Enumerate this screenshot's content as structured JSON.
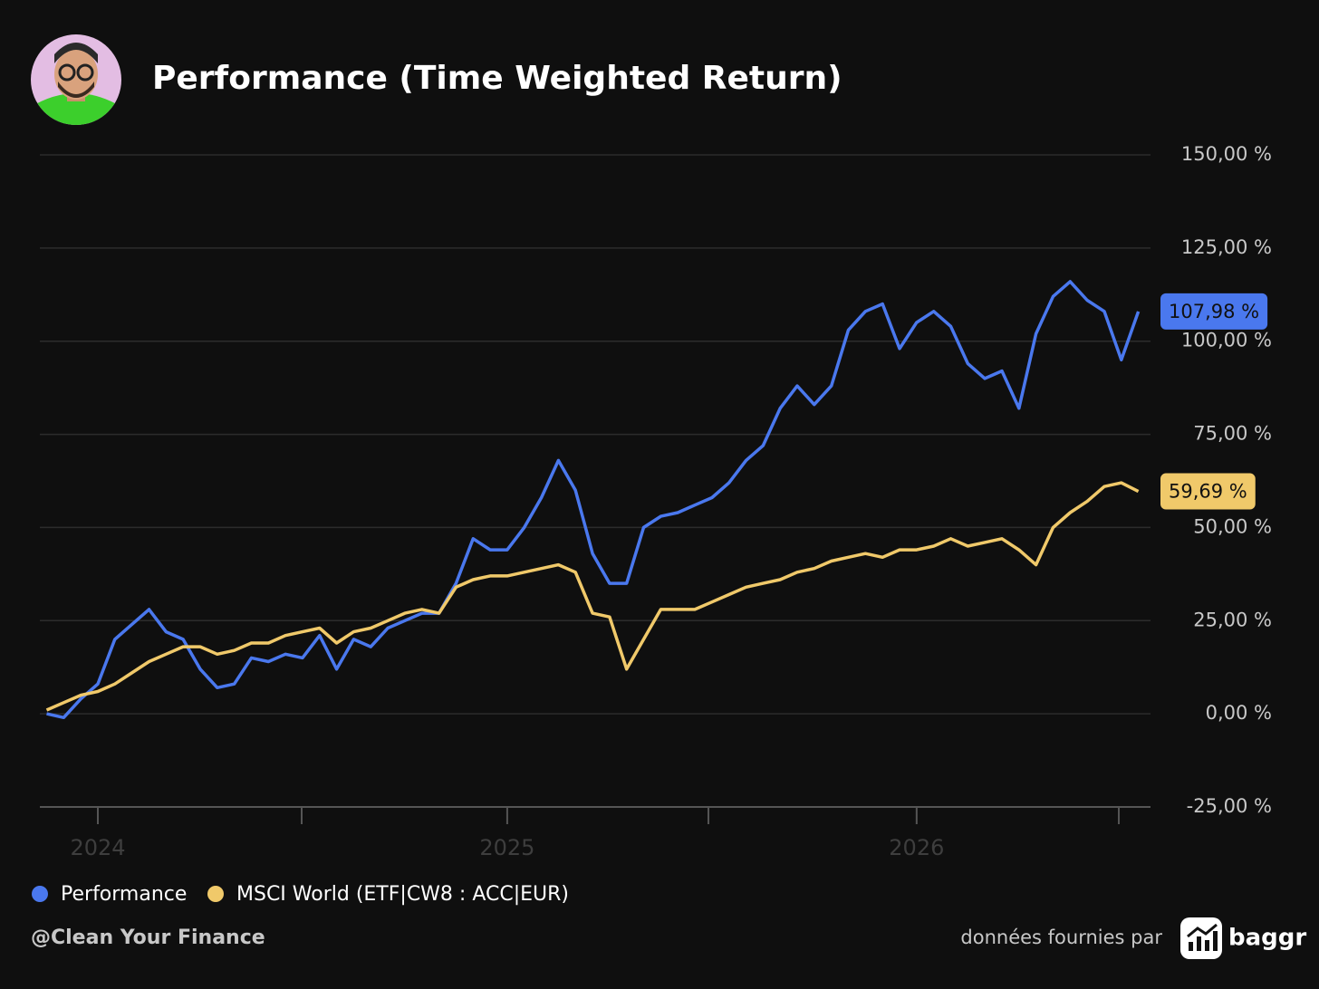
{
  "chart_data": {
    "type": "line",
    "title": "Performance (Time Weighted Return)",
    "categories": [
      null,
      null,
      null,
      "2024",
      null,
      null,
      null,
      null,
      null,
      null,
      null,
      null,
      null,
      null,
      null,
      null,
      null,
      null,
      null,
      null,
      null,
      null,
      null,
      null,
      null,
      null,
      null,
      "2025",
      null,
      null,
      null,
      null,
      null,
      null,
      null,
      null,
      null,
      null,
      null,
      null,
      null,
      null,
      null,
      null,
      null,
      null,
      null,
      null,
      null,
      null,
      null,
      "2026",
      null,
      null,
      null,
      null,
      null,
      null,
      null,
      null,
      null,
      null,
      null,
      null,
      null
    ],
    "series": [
      {
        "name": "Performance",
        "color": "#4a78ee",
        "values": [
          0,
          -1,
          4,
          8,
          20,
          24,
          28,
          22,
          20,
          12,
          7,
          8,
          15,
          14,
          16,
          15,
          21,
          12,
          20,
          18,
          23,
          25,
          27,
          27,
          35,
          47,
          44,
          44,
          50,
          58,
          68,
          60,
          43,
          35,
          35,
          50,
          53,
          54,
          56,
          58,
          62,
          68,
          72,
          82,
          88,
          83,
          88,
          103,
          108,
          110,
          98,
          105,
          108,
          104,
          94,
          90,
          92,
          82,
          102,
          112,
          116,
          111,
          108,
          95,
          107.98
        ],
        "value_labels": [
          null,
          null,
          null,
          null,
          null,
          null,
          null,
          null,
          null,
          null,
          null,
          null,
          null,
          null,
          null,
          null,
          null,
          null,
          null,
          null,
          null,
          null,
          null,
          null,
          null,
          null,
          null,
          null,
          null,
          null,
          null,
          null,
          null,
          null,
          null,
          null,
          null,
          null,
          null,
          null,
          null,
          null,
          null,
          null,
          null,
          null,
          null,
          null,
          null,
          null,
          null,
          null,
          null,
          null,
          null,
          null,
          null,
          null,
          null,
          null,
          null,
          null,
          null,
          null,
          "107,98 %"
        ]
      },
      {
        "name": "MSCI World (ETF|CW8 : ACC|EUR)",
        "color": "#f0c96a",
        "values": [
          1,
          3,
          5,
          6,
          8,
          11,
          14,
          16,
          18,
          18,
          16,
          17,
          19,
          19,
          21,
          22,
          23,
          19,
          22,
          23,
          25,
          27,
          28,
          27,
          34,
          36,
          37,
          37,
          38,
          39,
          40,
          38,
          27,
          26,
          12,
          20,
          28,
          28,
          28,
          30,
          32,
          34,
          35,
          36,
          38,
          39,
          41,
          42,
          43,
          42,
          44,
          44,
          45,
          47,
          45,
          46,
          47,
          44,
          40,
          50,
          54,
          57,
          61,
          62,
          59.69
        ],
        "value_labels": [
          null,
          null,
          null,
          null,
          null,
          null,
          null,
          null,
          null,
          null,
          null,
          null,
          null,
          null,
          null,
          null,
          null,
          null,
          null,
          null,
          null,
          null,
          null,
          null,
          null,
          null,
          null,
          null,
          null,
          null,
          null,
          null,
          null,
          null,
          null,
          null,
          null,
          null,
          null,
          null,
          null,
          null,
          null,
          null,
          null,
          null,
          null,
          null,
          null,
          null,
          null,
          null,
          null,
          null,
          null,
          null,
          null,
          null,
          null,
          null,
          null,
          null,
          null,
          null,
          "59,69 %"
        ]
      }
    ],
    "ylim": [
      -25,
      150
    ],
    "yticks": [
      {
        "value": -25,
        "label": "-25,00 %"
      },
      {
        "value": 0,
        "label": "0,00 %"
      },
      {
        "value": 25,
        "label": "25,00 %"
      },
      {
        "value": 50,
        "label": "50,00 %"
      },
      {
        "value": 75,
        "label": "75,00 %"
      },
      {
        "value": 100,
        "label": "100,00 %"
      },
      {
        "value": 125,
        "label": "125,00 %"
      },
      {
        "value": 150,
        "label": "150,00 %"
      }
    ],
    "grid": true
  },
  "footer": {
    "author": "@Clean Your Finance",
    "source": "données fournies par",
    "brand": "baggr"
  }
}
